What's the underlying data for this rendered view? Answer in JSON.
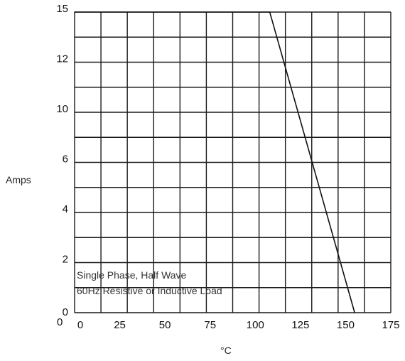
{
  "chart_data": {
    "type": "line",
    "title": "",
    "xlabel": "°C",
    "ylabel": "Amps",
    "xlim": [
      0,
      175
    ],
    "x_ticks": [
      "0",
      "25",
      "50",
      "75",
      "100",
      "125",
      "150",
      "175"
    ],
    "y_ticks": [
      "0",
      "2",
      "4",
      "6",
      "10",
      "12",
      "15"
    ],
    "y_origin_label": "0",
    "grid": true,
    "annotations": [
      "Single Phase, Half Wave",
      "60Hz Resistive or Inductive Load"
    ],
    "series": [
      {
        "x": [
          0,
          108,
          155
        ],
        "y": [
          15,
          15,
          0
        ]
      }
    ]
  }
}
